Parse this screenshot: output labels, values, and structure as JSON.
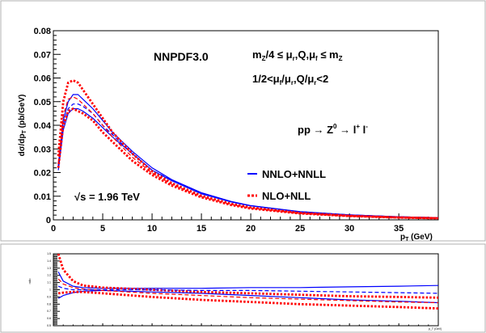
{
  "chart_data": [
    {
      "type": "line",
      "title": "",
      "xlabel_main": "p",
      "xlabel_sub": "T",
      "xlabel_unit": " (GeV)",
      "ylabel": "dσ/dp_T (pb/GeV)",
      "xlim": [
        0,
        39
      ],
      "ylim": [
        0,
        0.08
      ],
      "xticks": [
        "0",
        "5",
        "10",
        "15",
        "20",
        "25",
        "30",
        "35"
      ],
      "yticks": [
        "0",
        "0.01",
        "0.02",
        "0.03",
        "0.04",
        "0.05",
        "0.06",
        "0.07",
        "0.08"
      ],
      "annotations": {
        "pdf": "NNPDF3.0",
        "scale1": "m_Z/4 ≤ μ_r,Q,μ_f ≤ m_Z",
        "scale2": "1/2<μ_f/μ_r,Q/μ_r<2",
        "process": "pp → Z^0 → l^+ l^-",
        "energy": "√s = 1.96 TeV"
      },
      "legend": {
        "placement": "right",
        "entries": [
          {
            "label": "NNLO+NNLL",
            "color": "#0000ff"
          },
          {
            "label": "NLO+NLL",
            "color": "#ff0000"
          }
        ]
      },
      "series": [
        {
          "name": "NNLO+NNLL",
          "color": "#0000ff",
          "style": "solid",
          "x": [
            0.5,
            1,
            1.5,
            2,
            2.5,
            3,
            4,
            5,
            6,
            8,
            10,
            12,
            15,
            18,
            20,
            25,
            30,
            35,
            39
          ],
          "y": [
            0.023,
            0.042,
            0.05,
            0.053,
            0.053,
            0.051,
            0.047,
            0.042,
            0.037,
            0.029,
            0.022,
            0.017,
            0.0115,
            0.0078,
            0.006,
            0.0035,
            0.0021,
            0.0013,
            0.0009
          ]
        },
        {
          "name": "",
          "color": "#0000ff",
          "style": "solid",
          "x": [
            0.5,
            1,
            1.5,
            2,
            2.5,
            3,
            4,
            5,
            6,
            8,
            10,
            12,
            15,
            18,
            20,
            25,
            30,
            35,
            39
          ],
          "y": [
            0.021,
            0.038,
            0.045,
            0.047,
            0.047,
            0.046,
            0.043,
            0.039,
            0.035,
            0.028,
            0.021,
            0.0165,
            0.011,
            0.0076,
            0.0059,
            0.0034,
            0.0021,
            0.0013,
            0.0009
          ]
        },
        {
          "name": "",
          "color": "#0000ff",
          "style": "dashed",
          "x": [
            0.5,
            1,
            1.5,
            2,
            2.5,
            3,
            4,
            5,
            6,
            8,
            10,
            12,
            15,
            18,
            20,
            25,
            30,
            35,
            39
          ],
          "y": [
            0.022,
            0.04,
            0.047,
            0.049,
            0.049,
            0.048,
            0.045,
            0.04,
            0.036,
            0.028,
            0.021,
            0.0167,
            0.0112,
            0.0077,
            0.006,
            0.0034,
            0.0021,
            0.0013,
            0.0009
          ]
        },
        {
          "name": "NLO+NLL",
          "color": "#ff0000",
          "style": "dotted",
          "x": [
            0.5,
            1,
            1.5,
            2,
            2.5,
            3,
            4,
            5,
            6,
            8,
            10,
            12,
            15,
            18,
            20,
            25,
            30,
            35,
            39
          ],
          "y": [
            0.027,
            0.05,
            0.058,
            0.059,
            0.058,
            0.055,
            0.049,
            0.043,
            0.037,
            0.028,
            0.0205,
            0.0155,
            0.0102,
            0.0068,
            0.0052,
            0.0029,
            0.0017,
            0.001,
            0.0007
          ]
        },
        {
          "name": "",
          "color": "#ff0000",
          "style": "dotted",
          "x": [
            0.5,
            1,
            1.5,
            2,
            2.5,
            3,
            4,
            5,
            6,
            8,
            10,
            12,
            15,
            18,
            20,
            25,
            30,
            35,
            39
          ],
          "y": [
            0.022,
            0.04,
            0.046,
            0.047,
            0.046,
            0.045,
            0.042,
            0.037,
            0.033,
            0.025,
            0.019,
            0.0145,
            0.0095,
            0.0063,
            0.0048,
            0.0027,
            0.0016,
            0.001,
            0.0007
          ]
        },
        {
          "name": "",
          "color": "#ff0000",
          "style": "dashed",
          "x": [
            0.5,
            1,
            1.5,
            2,
            2.5,
            3,
            4,
            5,
            6,
            8,
            10,
            12,
            15,
            18,
            20,
            25,
            30,
            35,
            39
          ],
          "y": [
            0.024,
            0.044,
            0.051,
            0.052,
            0.051,
            0.049,
            0.045,
            0.04,
            0.035,
            0.0265,
            0.0198,
            0.015,
            0.0098,
            0.0065,
            0.005,
            0.0028,
            0.00165,
            0.001,
            0.0007
          ]
        }
      ]
    },
    {
      "type": "line",
      "title": "",
      "xlabel": "p_T (GeV)",
      "ylabel": "ratio",
      "xlim": [
        0,
        39
      ],
      "ylim": [
        0.5,
        1.5
      ],
      "yticks": [
        "0.5",
        "0.6",
        "0.7",
        "0.8",
        "0.9",
        "1",
        "1.1",
        "1.2",
        "1.3",
        "1.4",
        "1.5"
      ],
      "series": [
        {
          "name": "",
          "color": "#0000ff",
          "style": "solid",
          "x": [
            0.5,
            1,
            2,
            3,
            5,
            10,
            15,
            20,
            25,
            30,
            35,
            39
          ],
          "y": [
            1.25,
            1.12,
            1.05,
            1.03,
            1.02,
            1.02,
            1.02,
            1.03,
            1.03,
            1.04,
            1.05,
            1.06
          ]
        },
        {
          "name": "",
          "color": "#0000ff",
          "style": "solid",
          "x": [
            0.5,
            1,
            2,
            3,
            5,
            10,
            15,
            20,
            25,
            30,
            35,
            39
          ],
          "y": [
            0.88,
            0.92,
            0.96,
            0.98,
            0.99,
            0.97,
            0.95,
            0.92,
            0.89,
            0.86,
            0.84,
            0.82
          ]
        },
        {
          "name": "",
          "color": "#ff0000",
          "style": "dotted",
          "x": [
            0.5,
            1,
            2,
            3,
            5,
            10,
            15,
            20,
            25,
            30,
            35,
            39
          ],
          "y": [
            1.5,
            1.28,
            1.12,
            1.06,
            1.03,
            1.0,
            0.97,
            0.95,
            0.93,
            0.91,
            0.9,
            0.89
          ]
        },
        {
          "name": "",
          "color": "#ff0000",
          "style": "dotted",
          "x": [
            0.5,
            1,
            2,
            3,
            5,
            10,
            15,
            20,
            25,
            30,
            35,
            39
          ],
          "y": [
            0.95,
            0.96,
            0.97,
            0.97,
            0.95,
            0.9,
            0.86,
            0.83,
            0.8,
            0.78,
            0.76,
            0.74
          ]
        },
        {
          "name": "",
          "color": "#ff0000",
          "style": "dashed",
          "x": [
            0.5,
            1,
            2,
            3,
            5,
            10,
            15,
            20,
            25,
            30,
            35,
            39
          ],
          "y": [
            1.15,
            1.08,
            1.03,
            1.01,
            0.99,
            0.95,
            0.92,
            0.89,
            0.87,
            0.85,
            0.83,
            0.82
          ]
        },
        {
          "name": "",
          "color": "#0000ff",
          "style": "dashed",
          "x": [
            0.5,
            1,
            2,
            3,
            5,
            10,
            15,
            20,
            25,
            30,
            35,
            39
          ],
          "y": [
            1.05,
            1.02,
            1.0,
            1.0,
            1.0,
            1.0,
            0.99,
            0.99,
            0.98,
            0.97,
            0.96,
            0.95
          ]
        }
      ]
    }
  ]
}
